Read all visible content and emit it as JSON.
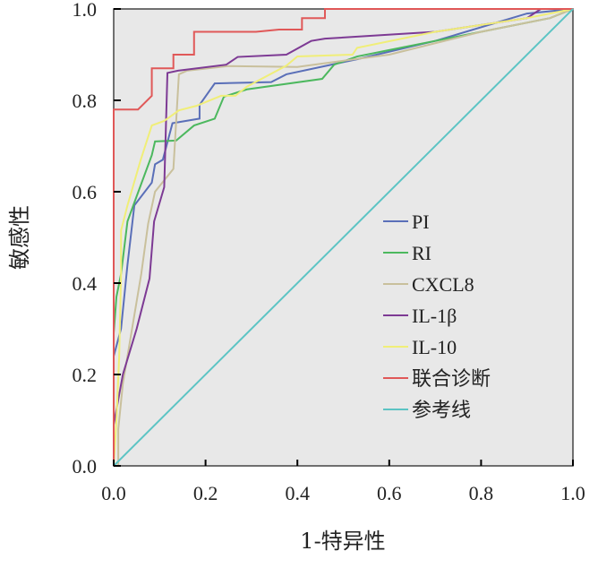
{
  "chart_data": {
    "type": "line",
    "title": "",
    "xlabel": "1-特异性",
    "ylabel": "敏感性",
    "xlim": [
      0,
      1
    ],
    "ylim": [
      0,
      1
    ],
    "xticks": [
      "0.0",
      "0.2",
      "0.4",
      "0.6",
      "0.8",
      "1.0"
    ],
    "yticks": [
      "0.0",
      "0.2",
      "0.4",
      "0.6",
      "0.8",
      "1.0"
    ],
    "legend_position": "center-right",
    "series": [
      {
        "name": "PI",
        "color": "#5a6fb8",
        "points": [
          [
            0,
            0
          ],
          [
            0,
            0.24
          ],
          [
            0.016,
            0.3
          ],
          [
            0.03,
            0.44
          ],
          [
            0.045,
            0.57
          ],
          [
            0.083,
            0.62
          ],
          [
            0.09,
            0.66
          ],
          [
            0.107,
            0.67
          ],
          [
            0.128,
            0.75
          ],
          [
            0.187,
            0.76
          ],
          [
            0.187,
            0.79
          ],
          [
            0.22,
            0.837
          ],
          [
            0.343,
            0.84
          ],
          [
            0.376,
            0.857
          ],
          [
            0.53,
            0.89
          ],
          [
            0.7,
            0.93
          ],
          [
            0.9,
            0.99
          ],
          [
            1,
            1
          ]
        ]
      },
      {
        "name": "RI",
        "color": "#4cb85e",
        "points": [
          [
            0,
            0
          ],
          [
            0,
            0.29
          ],
          [
            0.006,
            0.37
          ],
          [
            0.016,
            0.42
          ],
          [
            0.03,
            0.535
          ],
          [
            0.05,
            0.59
          ],
          [
            0.083,
            0.68
          ],
          [
            0.09,
            0.71
          ],
          [
            0.136,
            0.712
          ],
          [
            0.175,
            0.745
          ],
          [
            0.22,
            0.76
          ],
          [
            0.24,
            0.808
          ],
          [
            0.29,
            0.824
          ],
          [
            0.454,
            0.847
          ],
          [
            0.48,
            0.878
          ],
          [
            0.53,
            0.896
          ],
          [
            0.6,
            0.91
          ],
          [
            0.8,
            0.95
          ],
          [
            0.95,
            0.98
          ],
          [
            1,
            1
          ]
        ]
      },
      {
        "name": "CXCL8",
        "color": "#c9c09c",
        "points": [
          [
            0,
            0
          ],
          [
            0.01,
            0
          ],
          [
            0.01,
            0.08
          ],
          [
            0.02,
            0.18
          ],
          [
            0.04,
            0.3
          ],
          [
            0.06,
            0.42
          ],
          [
            0.075,
            0.53
          ],
          [
            0.09,
            0.6
          ],
          [
            0.13,
            0.65
          ],
          [
            0.142,
            0.857
          ],
          [
            0.16,
            0.865
          ],
          [
            0.25,
            0.875
          ],
          [
            0.4,
            0.873
          ],
          [
            0.45,
            0.88
          ],
          [
            0.6,
            0.9
          ],
          [
            0.8,
            0.95
          ],
          [
            0.95,
            0.98
          ],
          [
            1,
            1
          ]
        ]
      },
      {
        "name": "IL-1β",
        "color": "#7d3a94",
        "points": [
          [
            0,
            0
          ],
          [
            0,
            0.09
          ],
          [
            0.02,
            0.2
          ],
          [
            0.05,
            0.3
          ],
          [
            0.078,
            0.41
          ],
          [
            0.088,
            0.535
          ],
          [
            0.11,
            0.61
          ],
          [
            0.117,
            0.86
          ],
          [
            0.14,
            0.865
          ],
          [
            0.245,
            0.878
          ],
          [
            0.27,
            0.895
          ],
          [
            0.376,
            0.9
          ],
          [
            0.43,
            0.93
          ],
          [
            0.46,
            0.935
          ],
          [
            0.7,
            0.95
          ],
          [
            0.9,
            0.98
          ],
          [
            0.93,
            1
          ],
          [
            1,
            1
          ]
        ]
      },
      {
        "name": "IL-10",
        "color": "#f0ee78",
        "points": [
          [
            0,
            0
          ],
          [
            0.006,
            0.1
          ],
          [
            0.012,
            0.24
          ],
          [
            0.016,
            0.42
          ],
          [
            0.016,
            0.515
          ],
          [
            0.03,
            0.57
          ],
          [
            0.058,
            0.667
          ],
          [
            0.083,
            0.745
          ],
          [
            0.11,
            0.755
          ],
          [
            0.142,
            0.778
          ],
          [
            0.18,
            0.788
          ],
          [
            0.234,
            0.81
          ],
          [
            0.265,
            0.81
          ],
          [
            0.29,
            0.83
          ],
          [
            0.376,
            0.876
          ],
          [
            0.4,
            0.896
          ],
          [
            0.52,
            0.9
          ],
          [
            0.53,
            0.915
          ],
          [
            0.7,
            0.95
          ],
          [
            0.9,
            0.98
          ],
          [
            1,
            1
          ]
        ]
      },
      {
        "name": "联合诊断",
        "color": "#e05858",
        "points": [
          [
            0,
            0
          ],
          [
            0,
            0.78
          ],
          [
            0.053,
            0.78
          ],
          [
            0.083,
            0.81
          ],
          [
            0.083,
            0.87
          ],
          [
            0.13,
            0.87
          ],
          [
            0.13,
            0.9
          ],
          [
            0.175,
            0.9
          ],
          [
            0.175,
            0.95
          ],
          [
            0.31,
            0.95
          ],
          [
            0.36,
            0.955
          ],
          [
            0.41,
            0.955
          ],
          [
            0.41,
            0.98
          ],
          [
            0.46,
            0.98
          ],
          [
            0.46,
            1
          ],
          [
            1,
            1
          ]
        ]
      },
      {
        "name": "参考线",
        "color": "#5cc4c4",
        "points": [
          [
            0,
            0
          ],
          [
            1,
            1
          ]
        ]
      }
    ]
  }
}
